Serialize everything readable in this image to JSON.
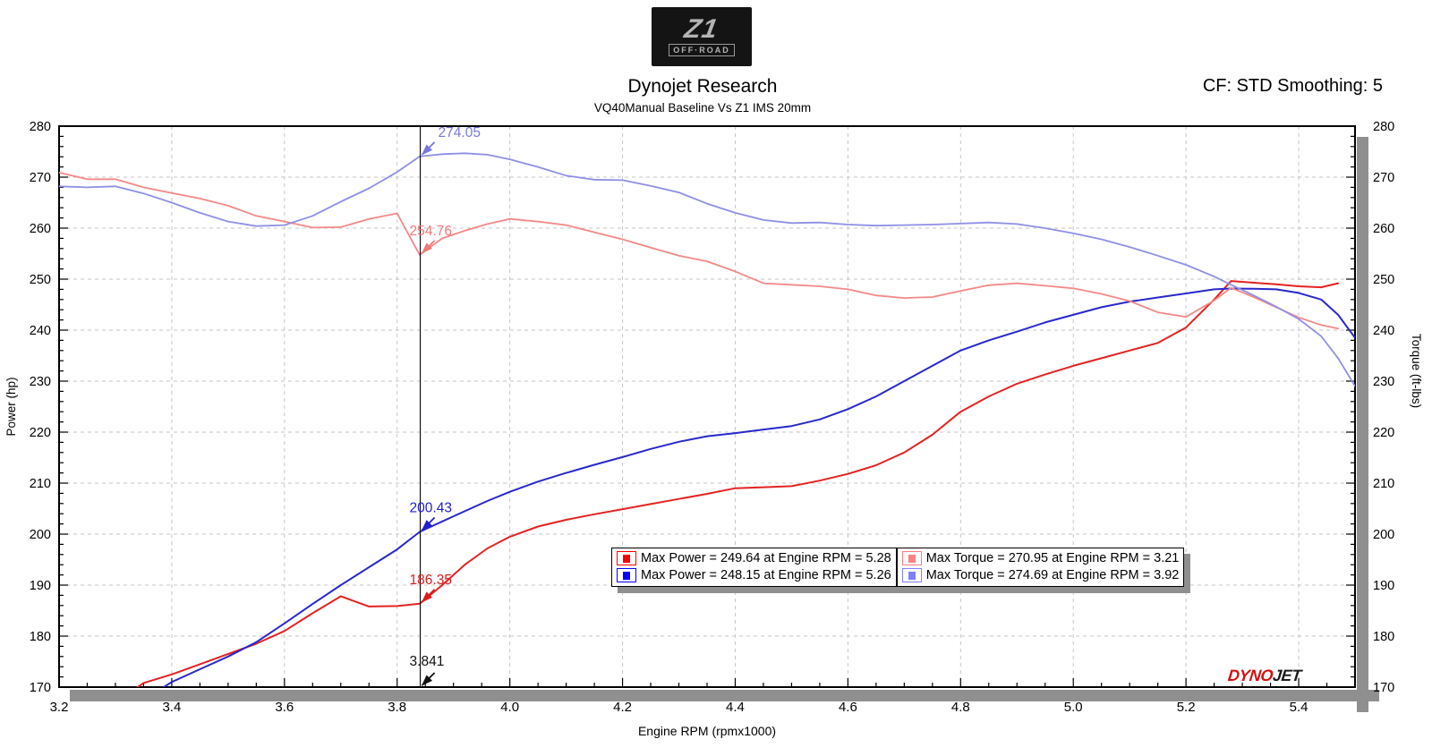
{
  "header": {
    "logo": {
      "line1": "Z1",
      "line2": "OFF·ROAD"
    },
    "title": "Dynojet Research",
    "subtitle": "VQ40Manual Baseline Vs Z1 IMS 20mm",
    "cf_text": "CF: STD Smoothing: 5"
  },
  "watermark": {
    "part1": "DYNO",
    "part2": "JET"
  },
  "chart_data": {
    "type": "line",
    "title": "Dynojet Research",
    "subtitle": "VQ40Manual Baseline Vs Z1 IMS 20mm",
    "xlabel": "Engine RPM (rpmx1000)",
    "ylabel_left": "Power (hp)",
    "ylabel_right": "Torque (ft-lbs)",
    "xlim": [
      3.2,
      5.5
    ],
    "ylim": [
      170,
      280
    ],
    "x_major_step": 0.2,
    "x_minor_step": 0.05,
    "y_major_step": 10,
    "y_minor_step": 2,
    "grid": true,
    "grid_color": "#c6c6c6",
    "shadow_color": "#8f8f8f",
    "x": [
      3.2,
      3.25,
      3.3,
      3.35,
      3.4,
      3.45,
      3.5,
      3.55,
      3.6,
      3.65,
      3.7,
      3.75,
      3.8,
      3.84,
      3.88,
      3.92,
      3.96,
      4.0,
      4.05,
      4.1,
      4.15,
      4.2,
      4.25,
      4.3,
      4.35,
      4.4,
      4.45,
      4.5,
      4.55,
      4.6,
      4.65,
      4.7,
      4.75,
      4.8,
      4.85,
      4.9,
      4.95,
      5.0,
      5.05,
      5.1,
      5.15,
      5.2,
      5.25,
      5.28,
      5.32,
      5.36,
      5.4,
      5.44,
      5.47,
      5.5
    ],
    "series": [
      {
        "name": "power-baseline",
        "legend": "Max Power = 249.64 at Engine RPM = 5.28",
        "color": "#e42222",
        "swatch": "#ff0000",
        "width": 2,
        "values": [
          null,
          null,
          167.0,
          170.8,
          172.5,
          174.5,
          176.5,
          178.5,
          181.0,
          184.5,
          187.8,
          185.8,
          185.9,
          186.35,
          190.0,
          194.0,
          197.2,
          199.5,
          201.5,
          202.8,
          203.9,
          204.9,
          205.9,
          206.9,
          207.9,
          209.0,
          209.2,
          209.4,
          210.5,
          211.8,
          213.5,
          216.0,
          219.5,
          224.0,
          227.0,
          229.5,
          231.3,
          233.0,
          234.5,
          236.0,
          237.5,
          240.5,
          246.0,
          249.64,
          249.3,
          249.0,
          248.6,
          248.4,
          249.2,
          null
        ]
      },
      {
        "name": "power-z1ims",
        "legend": "Max Power = 248.15 at Engine RPM = 5.26",
        "color": "#2828cc",
        "swatch": "#0000ff",
        "width": 2,
        "values": [
          null,
          null,
          164.0,
          167.5,
          171.0,
          173.5,
          176.0,
          178.8,
          182.5,
          186.3,
          190.0,
          193.5,
          197.0,
          200.43,
          202.5,
          204.5,
          206.5,
          208.3,
          210.3,
          212.0,
          213.6,
          215.1,
          216.7,
          218.1,
          219.2,
          219.8,
          220.5,
          221.2,
          222.5,
          224.5,
          227.0,
          230.0,
          233.0,
          236.0,
          238.0,
          239.7,
          241.5,
          243.0,
          244.5,
          245.6,
          246.4,
          247.2,
          248.0,
          248.15,
          248.1,
          248.0,
          247.3,
          246.0,
          243.0,
          238.5
        ]
      },
      {
        "name": "torque-baseline",
        "legend": "Max Torque = 270.95 at Engine RPM = 3.21",
        "color": "#f48888",
        "swatch": "#ff8080",
        "width": 1.8,
        "values": [
          270.9,
          269.6,
          269.6,
          268.0,
          266.9,
          265.8,
          264.4,
          262.4,
          261.3,
          260.1,
          260.2,
          261.8,
          262.9,
          254.76,
          258.0,
          259.5,
          260.8,
          261.8,
          261.3,
          260.6,
          259.2,
          257.8,
          256.2,
          254.6,
          253.5,
          251.5,
          249.2,
          248.9,
          248.6,
          248.0,
          246.8,
          246.3,
          246.5,
          247.7,
          248.8,
          249.2,
          248.7,
          248.2,
          247.1,
          245.7,
          243.5,
          242.6,
          245.8,
          248.3,
          246.5,
          244.5,
          242.5,
          241.0,
          240.3,
          null
        ]
      },
      {
        "name": "torque-z1ims",
        "legend": "Max Torque = 274.69 at Engine RPM = 3.92",
        "color": "#8f8fe6",
        "swatch": "#8080ff",
        "width": 1.8,
        "values": [
          268.2,
          268.0,
          268.2,
          266.8,
          265.0,
          263.0,
          261.3,
          260.4,
          260.6,
          262.4,
          265.2,
          267.8,
          271.0,
          274.05,
          274.5,
          274.69,
          274.4,
          273.5,
          272.0,
          270.3,
          269.5,
          269.4,
          268.3,
          267.0,
          264.8,
          263.0,
          261.6,
          261.0,
          261.1,
          260.7,
          260.5,
          260.6,
          260.7,
          260.9,
          261.1,
          260.8,
          260.0,
          259.0,
          257.8,
          256.3,
          254.6,
          252.8,
          250.5,
          248.9,
          246.8,
          244.6,
          242.2,
          238.8,
          234.5,
          229.0
        ]
      }
    ],
    "legend_position": "inside-bottom-center",
    "cursor": {
      "x": 3.841,
      "label": "3.841",
      "color": "#111111",
      "markers": [
        {
          "label": "274.05",
          "value": 274.05,
          "color": "#7878e0"
        },
        {
          "label": "254.76",
          "value": 254.76,
          "color": "#f07878"
        },
        {
          "label": "200.43",
          "value": 200.43,
          "color": "#2020cc"
        },
        {
          "label": "186.35",
          "value": 186.35,
          "color": "#dd1c1c"
        }
      ]
    }
  }
}
